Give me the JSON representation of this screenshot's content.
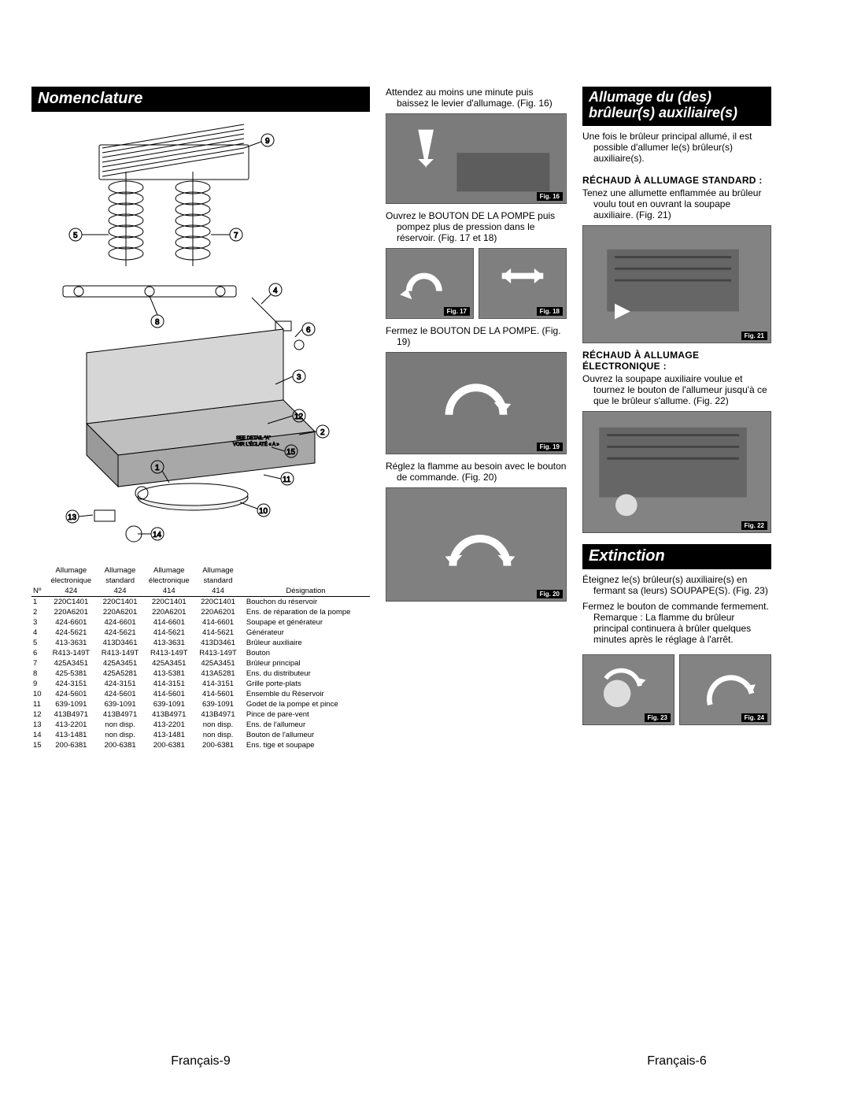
{
  "left": {
    "header": "Nomenclature",
    "table": {
      "header_row1": [
        "",
        "Allumage",
        "Allumage",
        "Allumage",
        "Allumage",
        ""
      ],
      "header_row2": [
        "",
        "électronique",
        "standard",
        "électronique",
        "standard",
        ""
      ],
      "header_row3": [
        "Nº",
        "424",
        "424",
        "414",
        "414",
        "Désignation"
      ],
      "rows": [
        [
          "1",
          "220C1401",
          "220C1401",
          "220C1401",
          "220C1401",
          "Bouchon du réservoir"
        ],
        [
          "2",
          "220A6201",
          "220A6201",
          "220A6201",
          "220A6201",
          "Ens. de réparation de la pompe"
        ],
        [
          "3",
          "424-6601",
          "424-6601",
          "414-6601",
          "414-6601",
          "Soupape et générateur"
        ],
        [
          "4",
          "424-5621",
          "424-5621",
          "414-5621",
          "414-5621",
          "Générateur"
        ],
        [
          "5",
          "413-3631",
          "413D3461",
          "413-3631",
          "413D3461",
          "Brûleur auxiliaire"
        ],
        [
          "6",
          "R413-149T",
          "R413-149T",
          "R413-149T",
          "R413-149T",
          "Bouton"
        ],
        [
          "7",
          "425A3451",
          "425A3451",
          "425A3451",
          "425A3451",
          "Brûleur principal"
        ],
        [
          "8",
          "425-5381",
          "425A5281",
          "413-5381",
          "413A5281",
          "Ens. du distributeur"
        ],
        [
          "9",
          "424-3151",
          "424-3151",
          "414-3151",
          "414-3151",
          "Grille porte-plats"
        ],
        [
          "10",
          "424-5601",
          "424-5601",
          "414-5601",
          "414-5601",
          "Ensemble du Réservoir"
        ],
        [
          "11",
          "639-1091",
          "639-1091",
          "639-1091",
          "639-1091",
          "Godet de la pompe et pince"
        ],
        [
          "12",
          "413B4971",
          "413B4971",
          "413B4971",
          "413B4971",
          "Pince de pare-vent"
        ],
        [
          "13",
          "413-2201",
          "non disp.",
          "413-2201",
          "non disp.",
          "Ens. de l'allumeur"
        ],
        [
          "14",
          "413-1481",
          "non disp.",
          "413-1481",
          "non disp.",
          "Bouton de l'allumeur"
        ],
        [
          "15",
          "200-6381",
          "200-6381",
          "200-6381",
          "200-6381",
          "Ens. tige et soupape"
        ]
      ]
    },
    "page_num": "Français-9"
  },
  "mid": {
    "b1": "Attendez au moins une minute puis baissez le levier d'allumage. (Fig. 16)",
    "fig16": "Fig. 16",
    "b2": "Ouvrez le BOUTON DE LA POMPE puis pompez plus de pression dans le réservoir. (Fig. 17 et 18)",
    "fig17": "Fig. 17",
    "fig18": "Fig. 18",
    "b3": "Fermez le BOUTON DE LA POMPE. (Fig. 19)",
    "fig19": "Fig. 19",
    "b4": "Réglez la flamme au besoin avec le bouton de commande. (Fig. 20)",
    "fig20": "Fig. 20"
  },
  "right": {
    "header1": "Allumage du (des) brûleur(s) auxiliaire(s)",
    "b1": "Une fois le brûleur principal allumé, il est possible d'allumer le(s) brûleur(s) auxiliaire(s).",
    "sub1": "RÉCHAUD À ALLUMAGE STANDARD :",
    "b2": "Tenez une allumette enflammée au brûleur voulu tout en ouvrant la soupape auxiliaire. (Fig. 21)",
    "fig21": "Fig. 21",
    "sub2": "RÉCHAUD À ALLUMAGE ÉLECTRONIQUE :",
    "b3": "Ouvrez la soupape auxiliaire voulue et tournez le bouton de l'allumeur jusqu'à ce que le brûleur s'allume. (Fig. 22)",
    "fig22": "Fig. 22",
    "header2": "Extinction",
    "b4": "Éteignez le(s) brûleur(s) auxiliaire(s) en fermant sa (leurs) SOUPAPE(S). (Fig. 23)",
    "b5": "Fermez le bouton de commande fermement. Remarque : La flamme du brûleur principal continuera à brûler quelques minutes après le réglage à l'arrêt.",
    "fig23": "Fig. 23",
    "fig24": "Fig. 24",
    "page_num": "Français-6"
  },
  "colors": {
    "header_bg": "#000000",
    "header_fg": "#ffffff",
    "photo_bg": "#8a8a8a"
  }
}
